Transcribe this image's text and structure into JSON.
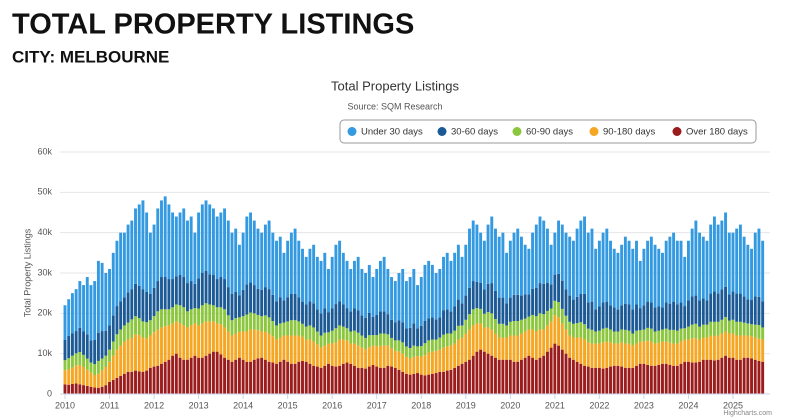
{
  "header": {
    "title": "TOTAL PROPERTY LISTINGS",
    "subtitle": "CITY: MELBOURNE"
  },
  "chart_data": {
    "type": "stacked-bar",
    "title": "Total Property Listings",
    "subtitle": "Source: SQM Research",
    "y_label": "Total Property Listings",
    "credit": "Highcharts.com",
    "ylim": [
      0,
      60000
    ],
    "yticks": [
      0,
      {
        "value": 10000,
        "label": "10k"
      },
      {
        "value": 20000,
        "label": "20k"
      },
      {
        "value": 30000,
        "label": "30k"
      },
      {
        "value": 40000,
        "label": "40k"
      },
      {
        "value": 50000,
        "label": "50k"
      },
      {
        "value": 60000,
        "label": "60k"
      }
    ],
    "grid": true,
    "categories": [
      "2010",
      null,
      null,
      null,
      null,
      null,
      null,
      null,
      null,
      null,
      null,
      null,
      "2011",
      null,
      null,
      null,
      null,
      null,
      null,
      null,
      null,
      null,
      null,
      null,
      "2012",
      null,
      null,
      null,
      null,
      null,
      null,
      null,
      null,
      null,
      null,
      null,
      "2013",
      null,
      null,
      null,
      null,
      null,
      null,
      null,
      null,
      null,
      null,
      null,
      "2014",
      null,
      null,
      null,
      null,
      null,
      null,
      null,
      null,
      null,
      null,
      null,
      "2015",
      null,
      null,
      null,
      null,
      null,
      null,
      null,
      null,
      null,
      null,
      null,
      "2016",
      null,
      null,
      null,
      null,
      null,
      null,
      null,
      null,
      null,
      null,
      null,
      "2017",
      null,
      null,
      null,
      null,
      null,
      null,
      null,
      null,
      null,
      null,
      null,
      "2018",
      null,
      null,
      null,
      null,
      null,
      null,
      null,
      null,
      null,
      null,
      null,
      "2019",
      null,
      null,
      null,
      null,
      null,
      null,
      null,
      null,
      null,
      null,
      null,
      "2020",
      null,
      null,
      null,
      null,
      null,
      null,
      null,
      null,
      null,
      null,
      null,
      "2021",
      null,
      null,
      null,
      null,
      null,
      null,
      null,
      null,
      null,
      null,
      null,
      "2022",
      null,
      null,
      null,
      null,
      null,
      null,
      null,
      null,
      null,
      null,
      null,
      "2023",
      null,
      null,
      null,
      null,
      null,
      null,
      null,
      null,
      null,
      null,
      null,
      "2024",
      null,
      null,
      null,
      null,
      null,
      null,
      null,
      null,
      null,
      null,
      null,
      "2025",
      null,
      null,
      null,
      null,
      null,
      null,
      null,
      null
    ],
    "series": [
      {
        "name": "Under 30 days",
        "color": "#3399e0",
        "values": [
          8600,
          9100,
          10000,
          10400,
          11600,
          11500,
          14200,
          13700,
          14600,
          17800,
          16900,
          14300,
          14000,
          15500,
          16200,
          17000,
          16000,
          16800,
          17000,
          18700,
          20200,
          22000,
          19700,
          15200,
          15700,
          18000,
          19000,
          20000,
          18500,
          16500,
          14800,
          15500,
          17000,
          15500,
          16000,
          12700,
          16300,
          17000,
          17500,
          17300,
          16500,
          15500,
          16000,
          17500,
          16500,
          15200,
          15700,
          12500,
          14200,
          16800,
          17300,
          16000,
          14900,
          14200,
          15500,
          17000,
          15400,
          15000,
          15000,
          11800,
          14000,
          15200,
          16200,
          14000,
          13100,
          11800,
          13000,
          14500,
          13000,
          13000,
          13800,
          10700,
          12800,
          14700,
          15000,
          12800,
          11700,
          10500,
          11800,
          13300,
          11500,
          11100,
          11900,
          9900,
          11400,
          12500,
          13500,
          11200,
          10600,
          10200,
          11700,
          13200,
          11700,
          12600,
          13500,
          10700,
          12100,
          13900,
          14200,
          13000,
          11500,
          12000,
          13300,
          14000,
          12500,
          13300,
          13600,
          11500,
          12600,
          14700,
          15000,
          14200,
          12400,
          12100,
          14700,
          16500,
          15400,
          15100,
          16100,
          12500,
          14100,
          15400,
          16400,
          14600,
          12300,
          11300,
          13900,
          15700,
          16500,
          15700,
          13400,
          9800,
          10400,
          13200,
          13900,
          14100,
          14600,
          14600,
          16900,
          18200,
          19200,
          17300,
          18100,
          15000,
          16300,
          17300,
          18100,
          16000,
          14500,
          14000,
          15000,
          16600,
          15800,
          15000,
          15800,
          11700,
          14000,
          15100,
          16300,
          15500,
          14300,
          13500,
          15300,
          16600,
          17100,
          15800,
          15300,
          12200,
          14800,
          16800,
          18600,
          16800,
          15300,
          14800,
          17100,
          18600,
          17100,
          17100,
          18400,
          15300,
          14600,
          16100,
          17100,
          14800,
          13500,
          12700,
          15800,
          16900,
          15000
        ]
      },
      {
        "name": "30-60 days",
        "color": "#1c5a96",
        "values": [
          5000,
          5500,
          5500,
          5500,
          6000,
          5800,
          6000,
          5500,
          6000,
          7000,
          6800,
          6200,
          6000,
          6500,
          7000,
          7000,
          7000,
          7500,
          7500,
          8000,
          8000,
          8000,
          7500,
          6500,
          7000,
          7500,
          8000,
          8000,
          7500,
          7000,
          7000,
          7500,
          7500,
          7000,
          7000,
          6000,
          7500,
          8000,
          8000,
          7500,
          7500,
          7000,
          7500,
          7500,
          7000,
          6500,
          6500,
          5500,
          6500,
          7500,
          7500,
          7000,
          6500,
          6500,
          7000,
          7000,
          6500,
          6000,
          6500,
          5500,
          6000,
          6500,
          6500,
          6000,
          5500,
          5500,
          6000,
          6000,
          5500,
          5500,
          6000,
          5000,
          5500,
          6000,
          6000,
          5500,
          5000,
          5000,
          5500,
          5500,
          5000,
          5000,
          5500,
          4500,
          5000,
          5500,
          5500,
          5000,
          4500,
          4500,
          5000,
          5000,
          4500,
          5000,
          5500,
          4500,
          5000,
          5500,
          5500,
          5500,
          5000,
          5000,
          6000,
          6000,
          5500,
          6000,
          6500,
          5500,
          6000,
          6500,
          7000,
          6500,
          6500,
          6000,
          7000,
          7500,
          7000,
          6500,
          6500,
          5500,
          6000,
          6500,
          6500,
          6000,
          6000,
          5500,
          6500,
          7000,
          7500,
          7500,
          7000,
          6000,
          6500,
          7000,
          7000,
          6500,
          6500,
          6000,
          6500,
          7000,
          7500,
          6500,
          7000,
          5500,
          6000,
          6500,
          6500,
          6000,
          6000,
          5500,
          6000,
          6500,
          6500,
          6000,
          6500,
          5500,
          6000,
          6500,
          6500,
          6000,
          6000,
          5500,
          6500,
          6500,
          7000,
          6500,
          6500,
          5500,
          6500,
          7000,
          7000,
          6500,
          6500,
          6000,
          7000,
          7500,
          7000,
          7500,
          7500,
          6500,
          7000,
          7000,
          7000,
          6500,
          6000,
          6000,
          7000,
          7000,
          6500
        ]
      },
      {
        "name": "60-90 days",
        "color": "#8cc63f",
        "values": [
          2500,
          2800,
          3000,
          3000,
          3200,
          3000,
          2800,
          2500,
          2800,
          3200,
          3000,
          2800,
          3000,
          3500,
          3800,
          4000,
          4000,
          4200,
          4500,
          4500,
          4200,
          4000,
          4000,
          3800,
          4000,
          4500,
          4500,
          4200,
          4000,
          4000,
          4200,
          4500,
          4500,
          4000,
          4000,
          3800,
          4200,
          4500,
          4500,
          4200,
          4000,
          4000,
          4200,
          4500,
          4000,
          3800,
          3800,
          3500,
          3800,
          4200,
          4200,
          4000,
          3800,
          3800,
          4000,
          4000,
          3800,
          3500,
          3500,
          3200,
          3500,
          3800,
          3800,
          3500,
          3200,
          3200,
          3500,
          3500,
          3200,
          3000,
          3200,
          2800,
          3200,
          3500,
          3500,
          3200,
          3000,
          3000,
          3200,
          3200,
          3000,
          2800,
          3000,
          2600,
          2800,
          3000,
          3000,
          2800,
          2600,
          2600,
          2800,
          2800,
          2600,
          2600,
          2800,
          2400,
          2600,
          3000,
          3000,
          3000,
          2800,
          3000,
          3200,
          3200,
          3000,
          3200,
          3400,
          3000,
          3400,
          3800,
          4000,
          3800,
          3600,
          3400,
          3800,
          4000,
          3600,
          3400,
          3400,
          3000,
          3400,
          3600,
          3600,
          3400,
          3200,
          3200,
          3600,
          3800,
          4000,
          3800,
          3600,
          3200,
          3600,
          3800,
          3600,
          3400,
          3400,
          3400,
          3600,
          3800,
          3800,
          3400,
          3400,
          3000,
          3200,
          3400,
          3400,
          3200,
          3000,
          3000,
          3200,
          3400,
          3200,
          3000,
          3200,
          2800,
          3000,
          3200,
          3200,
          3000,
          3000,
          3000,
          3200,
          3200,
          3400,
          3200,
          3200,
          2800,
          3200,
          3400,
          3600,
          3200,
          3200,
          3200,
          3400,
          3600,
          3400,
          3400,
          3600,
          3200,
          3400,
          3400,
          3400,
          3200,
          3000,
          3000,
          3200,
          3400,
          3000
        ]
      },
      {
        "name": "90-180 days",
        "color": "#f5a623",
        "values": [
          3500,
          3800,
          4000,
          4500,
          4800,
          4500,
          4000,
          3500,
          3000,
          3500,
          4000,
          4500,
          5000,
          6000,
          7000,
          7500,
          8000,
          8000,
          8500,
          9000,
          9000,
          8500,
          8000,
          8000,
          8500,
          9000,
          9000,
          8800,
          8500,
          8000,
          8000,
          8500,
          8500,
          8000,
          8000,
          8000,
          8000,
          8500,
          8500,
          8000,
          7500,
          7000,
          7500,
          7500,
          7000,
          6500,
          6500,
          6500,
          7000,
          7500,
          8000,
          7500,
          7000,
          6500,
          7000,
          7000,
          6500,
          6000,
          6000,
          6000,
          6500,
          7000,
          7000,
          6500,
          6000,
          5500,
          6000,
          6000,
          5500,
          5000,
          5000,
          5000,
          5500,
          6000,
          6500,
          6000,
          5500,
          5000,
          5500,
          5500,
          5000,
          4800,
          4800,
          4800,
          5000,
          5500,
          5500,
          5000,
          4500,
          4200,
          4500,
          4500,
          4200,
          4000,
          4200,
          4200,
          4500,
          5000,
          5500,
          5500,
          5500,
          5500,
          6000,
          6000,
          6000,
          6000,
          6500,
          6500,
          7000,
          7500,
          7500,
          7000,
          6500,
          6000,
          6500,
          6500,
          6000,
          5500,
          5500,
          5500,
          6000,
          6500,
          6500,
          6500,
          6500,
          6500,
          7000,
          7000,
          7000,
          6500,
          6500,
          6500,
          7000,
          7000,
          6500,
          6000,
          5500,
          5500,
          6000,
          6500,
          6500,
          6000,
          6000,
          6000,
          6000,
          6500,
          6500,
          6000,
          5500,
          5500,
          6000,
          6000,
          6000,
          5500,
          5500,
          5500,
          5500,
          6000,
          6000,
          5500,
          5500,
          5500,
          5500,
          5500,
          5500,
          5500,
          5500,
          5500,
          5500,
          6000,
          6000,
          5500,
          5500,
          5500,
          6000,
          6000,
          6000,
          6000,
          6000,
          6000,
          6000,
          6000,
          6000,
          5500,
          5500,
          5500,
          5500,
          5500,
          5500
        ]
      },
      {
        "name": "Over 180 days",
        "color": "#9b1c1c",
        "values": [
          2400,
          2300,
          2500,
          2600,
          2400,
          2200,
          2000,
          1800,
          1600,
          1500,
          1800,
          2200,
          3000,
          3500,
          4000,
          4500,
          5000,
          5500,
          5500,
          5800,
          5600,
          5500,
          5800,
          6500,
          6800,
          7000,
          7500,
          8000,
          8500,
          9500,
          10000,
          9000,
          8500,
          8500,
          9000,
          9500,
          9000,
          9000,
          9500,
          10000,
          10500,
          10500,
          9800,
          9000,
          8500,
          8000,
          8500,
          9000,
          8500,
          8000,
          8000,
          8500,
          8800,
          9000,
          8500,
          8000,
          7800,
          7500,
          8000,
          8500,
          8000,
          7500,
          7500,
          8000,
          8200,
          8000,
          7500,
          7000,
          6800,
          6500,
          7000,
          7500,
          7000,
          6800,
          7000,
          7500,
          7800,
          7500,
          7000,
          6500,
          6500,
          6300,
          6800,
          7200,
          6800,
          6500,
          6500,
          7000,
          6800,
          6500,
          6000,
          5500,
          5000,
          4800,
          5000,
          5200,
          4800,
          4600,
          4800,
          5000,
          5200,
          5500,
          5500,
          5800,
          6000,
          6500,
          7000,
          7500,
          8000,
          8500,
          9500,
          10500,
          11000,
          10500,
          10000,
          9500,
          9000,
          8500,
          8500,
          8500,
          8500,
          8000,
          8000,
          8500,
          9000,
          9500,
          9000,
          8500,
          9000,
          9500,
          10500,
          11500,
          12500,
          12000,
          11000,
          10000,
          9000,
          8500,
          8000,
          7500,
          7000,
          6800,
          6500,
          6500,
          6500,
          6300,
          6500,
          6800,
          7000,
          7000,
          6800,
          6500,
          6500,
          6500,
          7000,
          7500,
          7500,
          7200,
          7000,
          7000,
          7200,
          7500,
          7500,
          7200,
          7000,
          7000,
          7500,
          8000,
          8000,
          7800,
          7800,
          8000,
          8500,
          8500,
          8500,
          8300,
          8500,
          9000,
          9500,
          9000,
          9000,
          8500,
          8500,
          9000,
          9000,
          8800,
          8500,
          8200,
          8000
        ]
      }
    ]
  }
}
